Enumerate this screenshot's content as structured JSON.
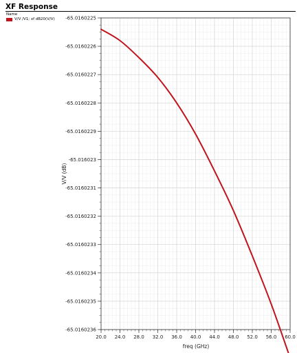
{
  "title": "XF Response",
  "legend": {
    "header": "Name",
    "entries": [
      {
        "label": "V/V /V1; xf dB20(V/V)",
        "color": "#c0141c"
      }
    ]
  },
  "chart_data": {
    "type": "line",
    "title": "XF Response",
    "xlabel": "freq (GHz)",
    "ylabel": "V/V (dB)",
    "xlim": [
      20.0,
      60.0
    ],
    "ylim": [
      -65.0160236,
      -65.0160225
    ],
    "x_ticks": [
      20.0,
      24.0,
      28.0,
      32.0,
      36.0,
      40.0,
      44.0,
      48.0,
      52.0,
      56.0,
      60.0
    ],
    "x_tick_labels": [
      "20.0",
      "24.0",
      "28.0",
      "32.0",
      "36.0",
      "40.0",
      "44.0",
      "48.0",
      "52.0",
      "56.0",
      "60.0"
    ],
    "y_ticks": [
      -65.0160225,
      -65.0160226,
      -65.0160227,
      -65.0160228,
      -65.0160229,
      -65.016023,
      -65.0160231,
      -65.0160232,
      -65.0160233,
      -65.0160234,
      -65.0160235,
      -65.0160236
    ],
    "y_tick_labels": [
      "-65.0160225",
      "-65.0160226",
      "-65.0160227",
      "-65.0160228",
      "-65.0160229",
      "-65.016023",
      "-65.0160231",
      "-65.0160232",
      "-65.0160233",
      "-65.0160234",
      "-65.0160235",
      "-65.0160236"
    ],
    "grid": true,
    "series": [
      {
        "name": "V/V /V1; xf dB20(V/V)",
        "color": "#c0141c",
        "x": [
          20,
          24,
          28,
          32,
          36,
          40,
          44,
          48,
          52,
          56,
          60
        ],
        "y": [
          -65.01602254,
          -65.01602258,
          -65.01602264,
          -65.01602271,
          -65.0160228,
          -65.01602291,
          -65.01602304,
          -65.01602318,
          -65.01602334,
          -65.01602351,
          -65.0160237
        ]
      }
    ]
  }
}
